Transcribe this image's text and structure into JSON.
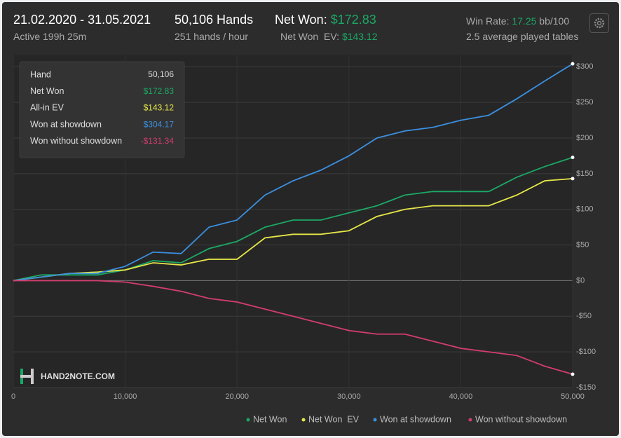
{
  "header": {
    "dates": "21.02.2020 - 31.05.2021",
    "active": "Active 199h 25m",
    "hands": "50,106 Hands",
    "rate": "251 hands / hour",
    "net_won_label": "Net Won:",
    "net_won": "$172.83",
    "ev_label": "Net Won  EV:",
    "ev": "$143.12",
    "win_rate_label": "Win Rate:",
    "win_rate": "17.25",
    "win_rate_unit": "bb/100",
    "tables": "2.5 average played tables"
  },
  "tooltip": {
    "rows": [
      [
        "Hand",
        "50,106"
      ],
      [
        "Net Won",
        "$172.83"
      ],
      [
        "All-in EV",
        "$143.12"
      ],
      [
        "Won at showdown",
        "$304.17"
      ],
      [
        "Won without showdown",
        "-$131.34"
      ]
    ]
  },
  "logo": "HAND2NOTE.COM",
  "chart_data": {
    "type": "line",
    "x": [
      0,
      2500,
      5000,
      7500,
      10000,
      12500,
      15000,
      17500,
      20000,
      22500,
      25000,
      27500,
      30000,
      32500,
      35000,
      37500,
      40000,
      42500,
      45000,
      47500,
      50000
    ],
    "series": [
      {
        "name": "Net Won",
        "color": "#1ba865",
        "values": [
          0,
          8,
          8,
          8,
          15,
          28,
          25,
          45,
          55,
          75,
          85,
          85,
          95,
          105,
          120,
          125,
          125,
          125,
          145,
          160,
          172.83
        ]
      },
      {
        "name": "Net Won  EV",
        "color": "#e6e64a",
        "values": [
          0,
          5,
          10,
          12,
          15,
          25,
          22,
          30,
          30,
          60,
          65,
          65,
          70,
          90,
          100,
          105,
          105,
          105,
          120,
          140,
          143.12
        ]
      },
      {
        "name": "Won at showdown",
        "color": "#3b8fe0",
        "values": [
          0,
          5,
          10,
          10,
          20,
          40,
          38,
          75,
          85,
          120,
          140,
          155,
          175,
          200,
          210,
          215,
          225,
          232,
          255,
          280,
          304.17
        ]
      },
      {
        "name": "Won without showdown",
        "color": "#d23d6e",
        "values": [
          0,
          0,
          0,
          0,
          -2,
          -8,
          -15,
          -25,
          -30,
          -40,
          -50,
          -60,
          -70,
          -75,
          -75,
          -85,
          -95,
          -100,
          -105,
          -120,
          -131.34
        ]
      }
    ],
    "xlim": [
      0,
      50000
    ],
    "xticks": [
      0,
      {
        "value": 10000,
        "label": "10,000"
      },
      {
        "value": 20000,
        "label": "20,000"
      },
      {
        "value": 30000,
        "label": "30,000"
      },
      {
        "value": 40000,
        "label": "40,000"
      },
      {
        "value": 50000,
        "label": "50,000"
      }
    ],
    "ylim": [
      -150,
      317
    ],
    "yticks": [
      {
        "value": 300,
        "label": "$300"
      },
      {
        "value": 250,
        "label": "$250"
      },
      {
        "value": 200,
        "label": "$200"
      },
      {
        "value": 150,
        "label": "$150"
      },
      {
        "value": 100,
        "label": "$100"
      },
      {
        "value": 50,
        "label": "$50"
      },
      {
        "value": 0,
        "label": "$0"
      },
      {
        "value": -50,
        "label": "-$50"
      },
      {
        "value": -100,
        "label": "-$100"
      },
      {
        "value": -150,
        "label": "-$150"
      }
    ],
    "grid": true
  }
}
